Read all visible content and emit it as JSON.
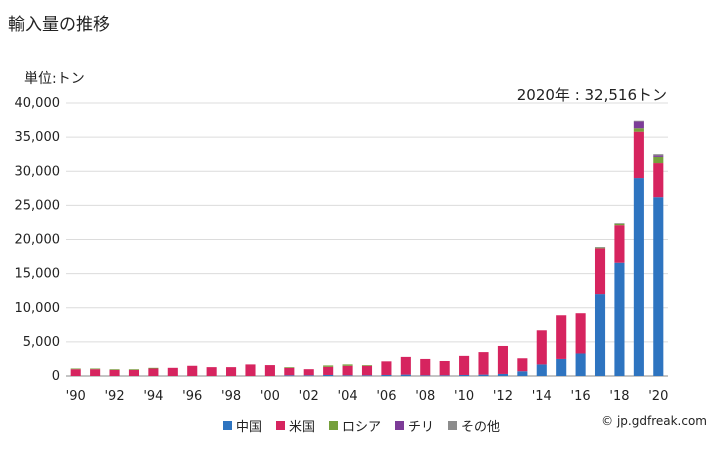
{
  "title": "輸入量の推移",
  "unit": "単位:トン",
  "annotation": "2020年 : 32,516トン",
  "copyright": "© jp.gdfreak.com",
  "chart_data": {
    "type": "bar",
    "stacked": true,
    "categories": [
      "1990",
      "1991",
      "1992",
      "1993",
      "1994",
      "1995",
      "1996",
      "1997",
      "1998",
      "1999",
      "2000",
      "2001",
      "2002",
      "2003",
      "2004",
      "2005",
      "2006",
      "2007",
      "2008",
      "2009",
      "2010",
      "2011",
      "2012",
      "2013",
      "2014",
      "2015",
      "2016",
      "2017",
      "2018",
      "2019",
      "2020"
    ],
    "x_tick_labels": [
      "'90",
      "",
      "'92",
      "",
      "'94",
      "",
      "'96",
      "",
      "'98",
      "",
      "'00",
      "",
      "'02",
      "",
      "'04",
      "",
      "'06",
      "",
      "'08",
      "",
      "'10",
      "",
      "'12",
      "",
      "'14",
      "",
      "'16",
      "",
      "'18",
      "",
      "'20"
    ],
    "ylim": [
      0,
      40000
    ],
    "y_ticks": [
      0,
      5000,
      10000,
      15000,
      20000,
      25000,
      30000,
      35000,
      40000
    ],
    "y_tick_labels": [
      "0",
      "5,000",
      "10,000",
      "15,000",
      "20,000",
      "25,000",
      "30,000",
      "35,000",
      "40,000"
    ],
    "grid": true,
    "legend_position": "bottom",
    "series": [
      {
        "name": "中国",
        "color": "#2e74c0",
        "values": [
          0,
          0,
          0,
          0,
          0,
          0,
          0,
          0,
          0,
          0,
          0,
          100,
          100,
          150,
          100,
          100,
          150,
          200,
          100,
          100,
          150,
          200,
          300,
          700,
          1700,
          2500,
          3300,
          12000,
          16600,
          29000,
          26200
        ]
      },
      {
        "name": "米国",
        "color": "#d6245f",
        "values": [
          1000,
          1000,
          900,
          900,
          1100,
          1200,
          1500,
          1300,
          1300,
          1700,
          1600,
          1100,
          900,
          1200,
          1400,
          1400,
          2000,
          2600,
          2400,
          2100,
          2800,
          3300,
          4100,
          1900,
          5000,
          6400,
          5900,
          6700,
          5500,
          6800,
          5000
        ]
      },
      {
        "name": "ロシア",
        "color": "#76a03c",
        "values": [
          100,
          100,
          100,
          100,
          100,
          0,
          0,
          0,
          0,
          0,
          0,
          100,
          0,
          200,
          200,
          100,
          0,
          0,
          0,
          0,
          0,
          0,
          0,
          0,
          0,
          0,
          0,
          100,
          200,
          500,
          900
        ]
      },
      {
        "name": "チリ",
        "color": "#7d3c98",
        "values": [
          0,
          0,
          0,
          0,
          0,
          0,
          0,
          0,
          0,
          0,
          0,
          0,
          0,
          0,
          0,
          0,
          0,
          0,
          0,
          0,
          0,
          0,
          0,
          0,
          0,
          0,
          0,
          0,
          0,
          1000,
          200
        ]
      },
      {
        "name": "その他",
        "color": "#8c8c8c",
        "values": [
          0,
          0,
          0,
          0,
          0,
          0,
          0,
          0,
          0,
          0,
          0,
          0,
          0,
          0,
          0,
          0,
          0,
          0,
          0,
          0,
          0,
          0,
          0,
          0,
          0,
          0,
          0,
          100,
          100,
          100,
          200
        ]
      }
    ]
  }
}
